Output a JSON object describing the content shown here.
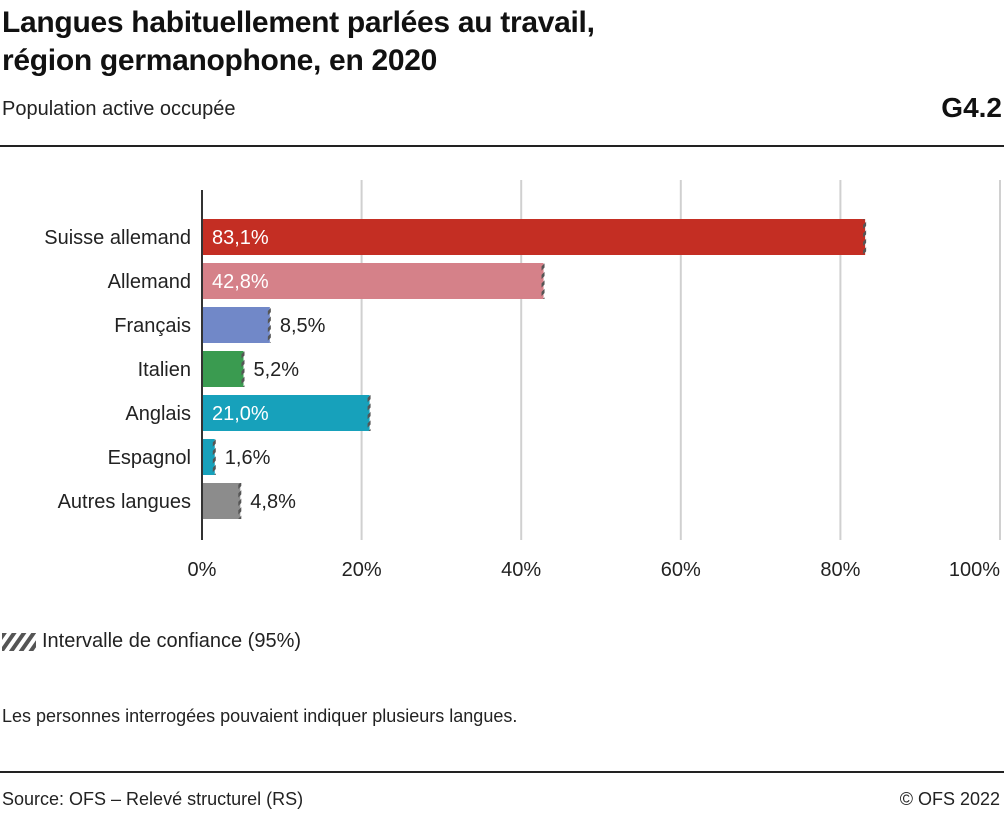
{
  "header": {
    "title_line1": "Langues habituellement parlées au travail,",
    "title_line2": "région germanophone, en 2020",
    "subtitle": "Population active occupée",
    "graph_number": "G4.2"
  },
  "chart_data": {
    "type": "bar",
    "orientation": "horizontal",
    "title": "Langues habituellement parlées au travail, région germanophone, en 2020",
    "subtitle": "Population active occupée",
    "xlabel": "",
    "ylabel": "",
    "xlim": [
      0,
      100
    ],
    "grid": true,
    "categories": [
      "Suisse allemand",
      "Allemand",
      "Français",
      "Italien",
      "Anglais",
      "Espagnol",
      "Autres langues"
    ],
    "values": [
      83.1,
      42.8,
      8.5,
      5.2,
      21.0,
      1.6,
      4.8
    ],
    "value_labels": [
      "83,1%",
      "42,8%",
      "8,5%",
      "5,2%",
      "21,0%",
      "1,6%",
      "4,8%"
    ],
    "label_inside": [
      true,
      true,
      false,
      false,
      true,
      false,
      false
    ],
    "colors": [
      "#c42e23",
      "#d58189",
      "#7188c8",
      "#3a9b50",
      "#17a1bb",
      "#17a1bb",
      "#8c8c8c"
    ],
    "x_ticks": [
      0,
      20,
      40,
      60,
      80,
      100
    ],
    "x_tick_labels": [
      "0%",
      "20%",
      "40%",
      "60%",
      "80%",
      "100%"
    ],
    "confidence_interval_shown": true,
    "legend": {
      "position": "bottom-left",
      "entries": [
        "Intervalle de confiance (95%)"
      ]
    }
  },
  "footer": {
    "note": "Les personnes interrogées pouvaient indiquer plusieurs langues.",
    "source": "Source: OFS – Relevé structurel (RS)",
    "copyright": "© OFS 2022"
  },
  "colors": {
    "grid": "#d0d0d0",
    "axis": "#333333",
    "ci_hatch": "#555555",
    "rule": "#222222"
  }
}
